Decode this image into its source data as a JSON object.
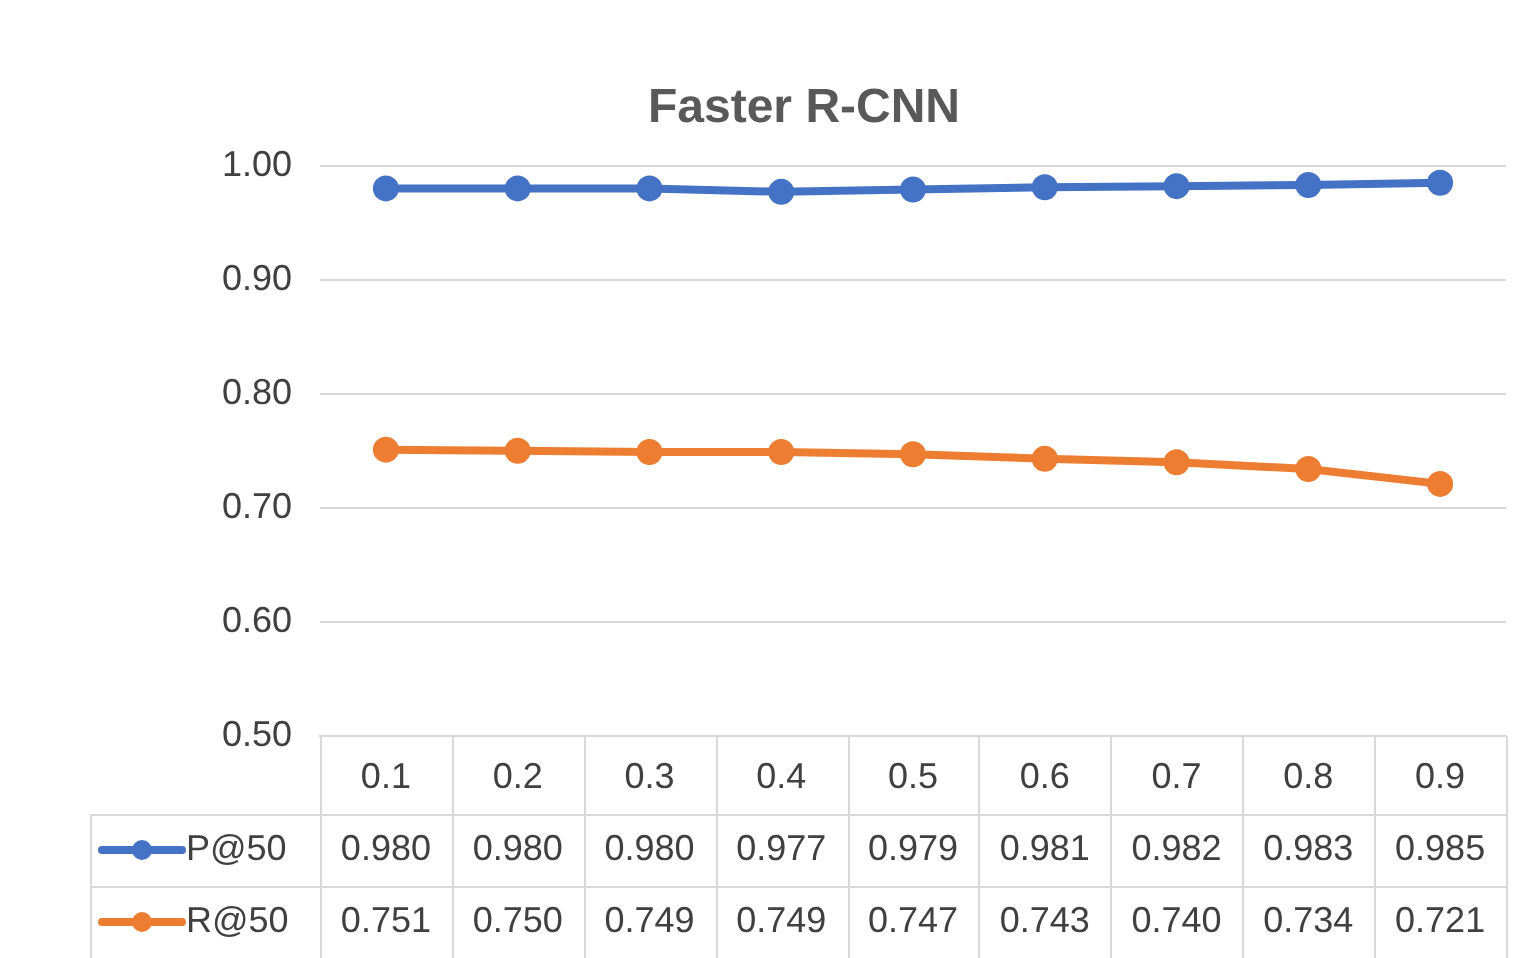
{
  "chart_data": {
    "type": "line",
    "title": "Faster R-CNN",
    "categories": [
      "0.1",
      "0.2",
      "0.3",
      "0.4",
      "0.5",
      "0.6",
      "0.7",
      "0.8",
      "0.9"
    ],
    "series": [
      {
        "name": "P@50",
        "color": "#4472c4",
        "values": [
          0.98,
          0.98,
          0.98,
          0.977,
          0.979,
          0.981,
          0.982,
          0.983,
          0.985
        ],
        "value_labels": [
          "0.980",
          "0.980",
          "0.980",
          "0.977",
          "0.979",
          "0.981",
          "0.982",
          "0.983",
          "0.985"
        ]
      },
      {
        "name": "R@50",
        "color": "#ed7d31",
        "values": [
          0.751,
          0.75,
          0.749,
          0.749,
          0.747,
          0.743,
          0.74,
          0.734,
          0.721
        ],
        "value_labels": [
          "0.751",
          "0.750",
          "0.749",
          "0.749",
          "0.747",
          "0.743",
          "0.740",
          "0.734",
          "0.721"
        ]
      }
    ],
    "ylim": [
      0.5,
      1.0
    ],
    "yticks": [
      {
        "value": 0.5,
        "label": "0.50"
      },
      {
        "value": 0.6,
        "label": "0.60"
      },
      {
        "value": 0.7,
        "label": "0.70"
      },
      {
        "value": 0.8,
        "label": "0.80"
      },
      {
        "value": 0.9,
        "label": "0.90"
      },
      {
        "value": 1.0,
        "label": "1.00"
      }
    ],
    "grid": "y",
    "legend": "bottom",
    "marker": "circle",
    "line_style": "solid"
  }
}
